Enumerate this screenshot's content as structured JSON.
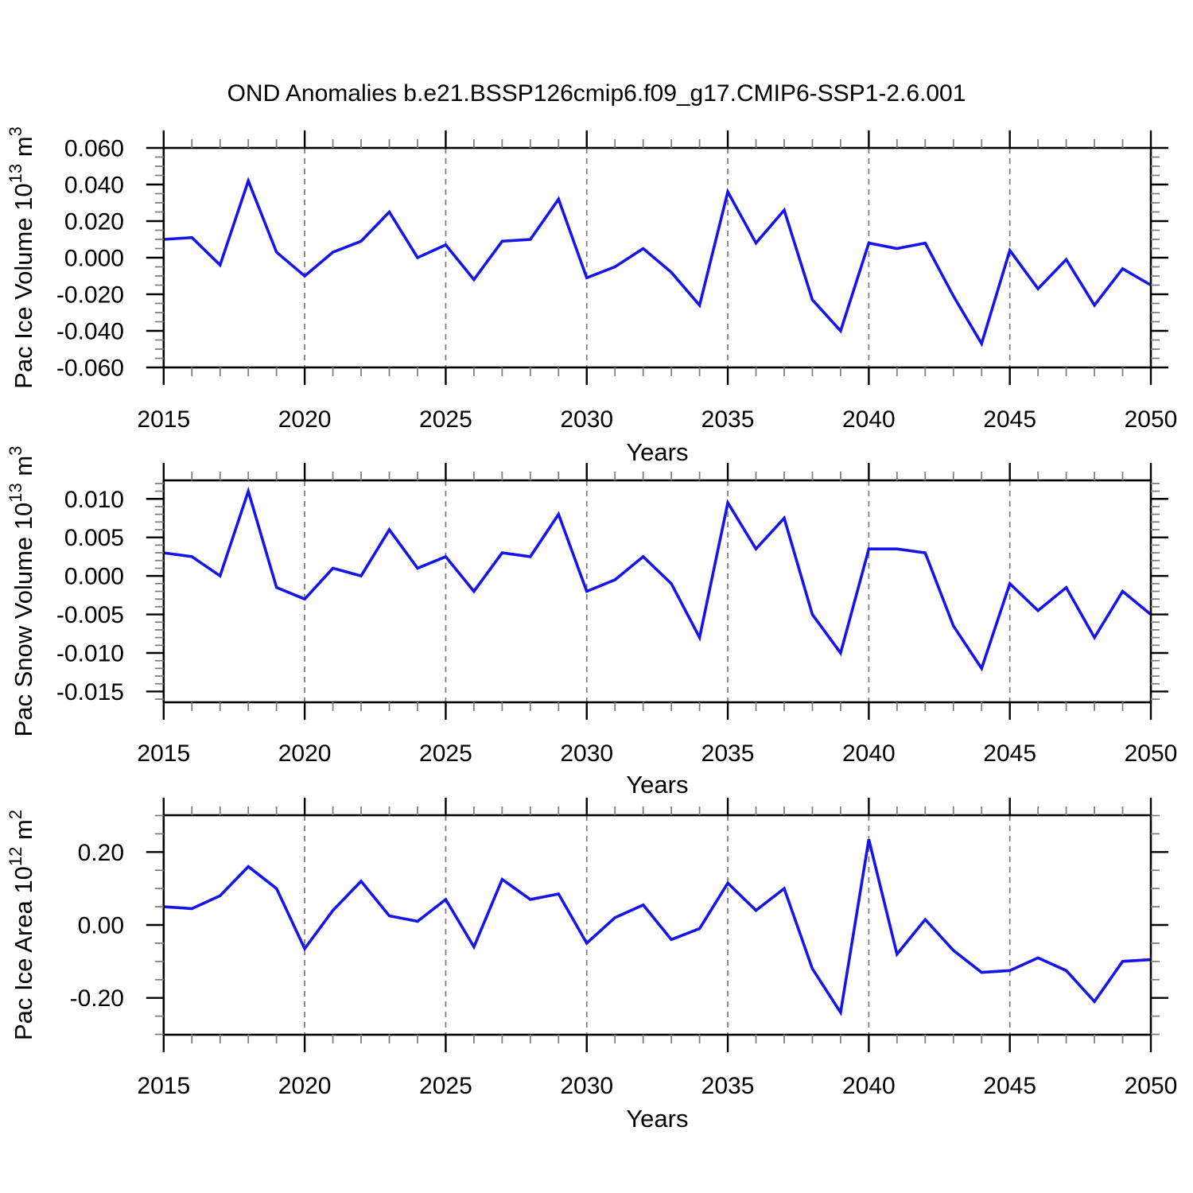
{
  "title": "OND Anomalies b.e21.BSSP126cmip6.f09_g17.CMIP6-SSP1-2.6.001",
  "colors": {
    "line": "#1414eb",
    "grid": "#808080",
    "axis": "#000000",
    "minor_tick": "#808080",
    "background": "#ffffff"
  },
  "chart_data": [
    {
      "type": "line",
      "name": "pac-ice-volume",
      "ylabel": "Pac Ice Volume 10^13 m^3",
      "ylabel_segments": [
        {
          "t": "Pac Ice Volume 10"
        },
        {
          "t": "13",
          "sup": true
        },
        {
          "t": " m"
        },
        {
          "t": "3",
          "sup": true
        }
      ],
      "xlabel": "Years",
      "x": [
        2015,
        2016,
        2017,
        2018,
        2019,
        2020,
        2021,
        2022,
        2023,
        2024,
        2025,
        2026,
        2027,
        2028,
        2029,
        2030,
        2031,
        2032,
        2033,
        2034,
        2035,
        2036,
        2037,
        2038,
        2039,
        2040,
        2041,
        2042,
        2043,
        2044,
        2045,
        2046,
        2047,
        2048,
        2049,
        2050
      ],
      "values": [
        0.01,
        0.011,
        -0.004,
        0.042,
        0.003,
        -0.01,
        0.003,
        0.009,
        0.025,
        0.0,
        0.007,
        -0.012,
        0.009,
        0.01,
        0.032,
        -0.011,
        -0.005,
        0.005,
        -0.008,
        -0.026,
        0.036,
        0.008,
        0.026,
        -0.023,
        -0.04,
        0.008,
        0.005,
        0.008,
        -0.021,
        -0.047,
        0.004,
        -0.017,
        -0.001,
        -0.026,
        -0.006,
        -0.015
      ],
      "ylim": [
        -0.06,
        0.06
      ],
      "yticks": [
        {
          "value": 0.06,
          "label": "0.060"
        },
        {
          "value": 0.04,
          "label": "0.040"
        },
        {
          "value": 0.02,
          "label": "0.020"
        },
        {
          "value": 0.0,
          "label": "0.000"
        },
        {
          "value": -0.02,
          "label": "-0.020"
        },
        {
          "value": -0.04,
          "label": "-0.040"
        },
        {
          "value": -0.06,
          "label": "-0.060"
        }
      ],
      "y_minor_step": 0.005,
      "xticks": [
        {
          "value": 2015,
          "label": "2015"
        },
        {
          "value": 2020,
          "label": "2020"
        },
        {
          "value": 2025,
          "label": "2025"
        },
        {
          "value": 2030,
          "label": "2030"
        },
        {
          "value": 2035,
          "label": "2035"
        },
        {
          "value": 2040,
          "label": "2040"
        },
        {
          "value": 2045,
          "label": "2045"
        },
        {
          "value": 2050,
          "label": "2050"
        }
      ],
      "x_minor_step": 1,
      "grid_x": [
        2020,
        2025,
        2030,
        2035,
        2040,
        2045
      ],
      "xlim": [
        2015,
        2050
      ]
    },
    {
      "type": "line",
      "name": "pac-snow-volume",
      "ylabel": "Pac Snow Volume 10^13 m^3",
      "ylabel_segments": [
        {
          "t": "Pac Snow Volume 10"
        },
        {
          "t": "13",
          "sup": true
        },
        {
          "t": " m"
        },
        {
          "t": "3",
          "sup": true
        }
      ],
      "xlabel": "Years",
      "x": [
        2015,
        2016,
        2017,
        2018,
        2019,
        2020,
        2021,
        2022,
        2023,
        2024,
        2025,
        2026,
        2027,
        2028,
        2029,
        2030,
        2031,
        2032,
        2033,
        2034,
        2035,
        2036,
        2037,
        2038,
        2039,
        2040,
        2041,
        2042,
        2043,
        2044,
        2045,
        2046,
        2047,
        2048,
        2049,
        2050
      ],
      "values": [
        0.003,
        0.0025,
        0.0,
        0.011,
        -0.0015,
        -0.003,
        0.001,
        0.0,
        0.006,
        0.001,
        0.0025,
        -0.002,
        0.003,
        0.0025,
        0.008,
        -0.002,
        -0.0005,
        0.0025,
        -0.001,
        -0.008,
        0.0095,
        0.0035,
        0.0075,
        -0.005,
        -0.01,
        0.0035,
        0.0035,
        0.003,
        -0.0065,
        -0.012,
        -0.001,
        -0.0045,
        -0.0015,
        -0.008,
        -0.002,
        -0.005
      ],
      "ylim": [
        -0.0164,
        0.0124
      ],
      "yticks": [
        {
          "value": 0.01,
          "label": "0.010"
        },
        {
          "value": 0.005,
          "label": "0.005"
        },
        {
          "value": 0.0,
          "label": "0.000"
        },
        {
          "value": -0.005,
          "label": "-0.005"
        },
        {
          "value": -0.01,
          "label": "-0.010"
        },
        {
          "value": -0.015,
          "label": "-0.015"
        }
      ],
      "y_minor_step": 0.001,
      "xticks": [
        {
          "value": 2015,
          "label": "2015"
        },
        {
          "value": 2020,
          "label": "2020"
        },
        {
          "value": 2025,
          "label": "2025"
        },
        {
          "value": 2030,
          "label": "2030"
        },
        {
          "value": 2035,
          "label": "2035"
        },
        {
          "value": 2040,
          "label": "2040"
        },
        {
          "value": 2045,
          "label": "2045"
        },
        {
          "value": 2050,
          "label": "2050"
        }
      ],
      "x_minor_step": 1,
      "grid_x": [
        2020,
        2025,
        2030,
        2035,
        2040,
        2045
      ],
      "xlim": [
        2015,
        2050
      ]
    },
    {
      "type": "line",
      "name": "pac-ice-area",
      "ylabel": "Pac Ice Area 10^12 m^2",
      "ylabel_segments": [
        {
          "t": "Pac Ice Area 10"
        },
        {
          "t": "12",
          "sup": true
        },
        {
          "t": " m"
        },
        {
          "t": "2",
          "sup": true
        }
      ],
      "xlabel": "Years",
      "x": [
        2015,
        2016,
        2017,
        2018,
        2019,
        2020,
        2021,
        2022,
        2023,
        2024,
        2025,
        2026,
        2027,
        2028,
        2029,
        2030,
        2031,
        2032,
        2033,
        2034,
        2035,
        2036,
        2037,
        2038,
        2039,
        2040,
        2041,
        2042,
        2043,
        2044,
        2045,
        2046,
        2047,
        2048,
        2049,
        2050
      ],
      "values": [
        0.05,
        0.045,
        0.08,
        0.16,
        0.1,
        -0.065,
        0.04,
        0.12,
        0.025,
        0.01,
        0.07,
        -0.06,
        0.125,
        0.07,
        0.085,
        -0.05,
        0.02,
        0.055,
        -0.04,
        -0.01,
        0.115,
        0.04,
        0.1,
        -0.12,
        -0.24,
        0.235,
        -0.08,
        0.015,
        -0.07,
        -0.13,
        -0.125,
        -0.09,
        -0.125,
        -0.21,
        -0.1,
        -0.095
      ],
      "ylim": [
        -0.301,
        0.301
      ],
      "yticks": [
        {
          "value": 0.2,
          "label": "0.20"
        },
        {
          "value": 0.0,
          "label": "0.00"
        },
        {
          "value": -0.2,
          "label": "-0.20"
        }
      ],
      "y_minor_step": 0.05,
      "xticks": [
        {
          "value": 2015,
          "label": "2015"
        },
        {
          "value": 2020,
          "label": "2020"
        },
        {
          "value": 2025,
          "label": "2025"
        },
        {
          "value": 2030,
          "label": "2030"
        },
        {
          "value": 2035,
          "label": "2035"
        },
        {
          "value": 2040,
          "label": "2040"
        },
        {
          "value": 2045,
          "label": "2045"
        },
        {
          "value": 2050,
          "label": "2050"
        }
      ],
      "x_minor_step": 1,
      "grid_x": [
        2020,
        2025,
        2030,
        2035,
        2040,
        2045
      ],
      "xlim": [
        2015,
        2050
      ]
    }
  ]
}
